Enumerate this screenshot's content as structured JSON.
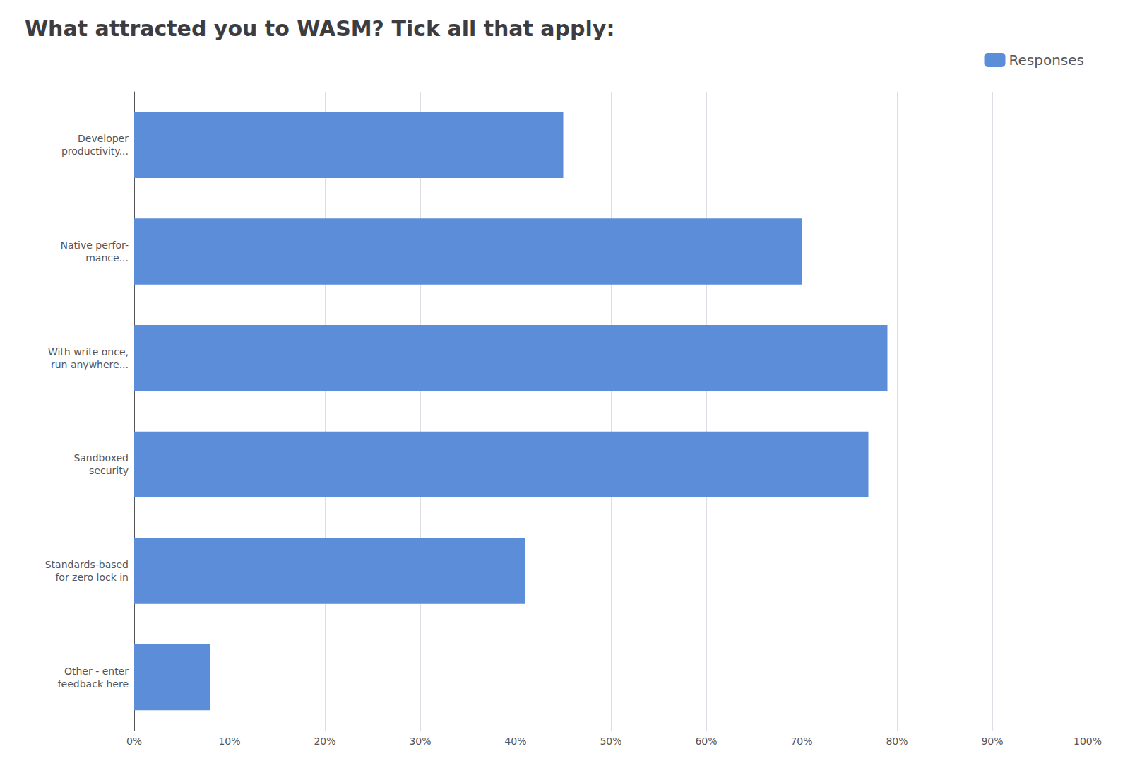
{
  "chart_data": {
    "type": "bar",
    "title": "What attracted you to WASM? Tick all that apply:",
    "orientation": "horizontal",
    "categories": [
      "Developer\nproductivity...",
      "Native perfor-\nmance...",
      "With write once,\nrun anywhere...",
      "Sandboxed\nsecurity",
      "Standards-based\nfor zero lock in",
      "Other - enter\nfeedback here"
    ],
    "series": [
      {
        "name": "Responses",
        "color": "#5b8dd9",
        "values": [
          45,
          70,
          79,
          77,
          41,
          8
        ]
      }
    ],
    "xlim": [
      0,
      100
    ],
    "xticks": [
      {
        "value": 0,
        "label": "0%"
      },
      {
        "value": 10,
        "label": "10%"
      },
      {
        "value": 20,
        "label": "20%"
      },
      {
        "value": 30,
        "label": "30%"
      },
      {
        "value": 40,
        "label": "40%"
      },
      {
        "value": 50,
        "label": "50%"
      },
      {
        "value": 60,
        "label": "60%"
      },
      {
        "value": 70,
        "label": "70%"
      },
      {
        "value": 80,
        "label": "80%"
      },
      {
        "value": 90,
        "label": "90%"
      },
      {
        "value": 100,
        "label": "100%"
      }
    ],
    "grid": true,
    "legend": "upper right"
  }
}
